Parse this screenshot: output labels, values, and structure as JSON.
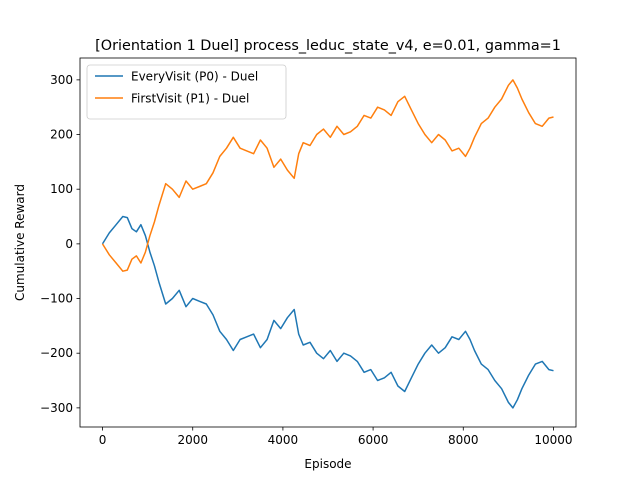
{
  "chart_data": {
    "type": "line",
    "title": "[Orientation 1 Duel] process_leduc_state_v4, e=0.01, gamma=1",
    "xlabel": "Episode",
    "ylabel": "Cumulative Reward",
    "xlim": [
      -500,
      10500
    ],
    "ylim": [
      -335,
      340
    ],
    "xticks": [
      0,
      2000,
      4000,
      6000,
      8000,
      10000
    ],
    "xtick_labels": [
      "0",
      "2000",
      "4000",
      "6000",
      "8000",
      "10000"
    ],
    "yticks": [
      -300,
      -200,
      -100,
      0,
      100,
      200,
      300
    ],
    "ytick_labels": [
      "−300",
      "−200",
      "−100",
      "0",
      "100",
      "200",
      "300"
    ],
    "grid": false,
    "legend_position": "upper-left",
    "series": [
      {
        "name": "EveryVisit (P0) - Duel",
        "color": "#1f77b4",
        "x": [
          0,
          150,
          300,
          450,
          550,
          650,
          750,
          850,
          950,
          1050,
          1150,
          1250,
          1400,
          1550,
          1700,
          1850,
          2000,
          2150,
          2300,
          2450,
          2600,
          2750,
          2900,
          3050,
          3200,
          3350,
          3500,
          3650,
          3800,
          3950,
          4100,
          4250,
          4350,
          4450,
          4600,
          4750,
          4900,
          5050,
          5200,
          5350,
          5500,
          5650,
          5800,
          5950,
          6100,
          6250,
          6400,
          6550,
          6700,
          6850,
          7000,
          7150,
          7300,
          7450,
          7600,
          7750,
          7900,
          8050,
          8150,
          8250,
          8400,
          8550,
          8700,
          8850,
          9000,
          9100,
          9200,
          9300,
          9450,
          9600,
          9750,
          9900,
          10000
        ],
        "y": [
          0,
          20,
          35,
          50,
          48,
          28,
          22,
          35,
          15,
          -15,
          -40,
          -70,
          -110,
          -100,
          -85,
          -115,
          -100,
          -105,
          -110,
          -130,
          -160,
          -175,
          -195,
          -175,
          -170,
          -165,
          -190,
          -175,
          -140,
          -155,
          -135,
          -120,
          -165,
          -185,
          -180,
          -200,
          -210,
          -195,
          -215,
          -200,
          -205,
          -215,
          -235,
          -230,
          -250,
          -245,
          -235,
          -260,
          -270,
          -245,
          -220,
          -200,
          -185,
          -200,
          -190,
          -170,
          -175,
          -160,
          -175,
          -195,
          -220,
          -230,
          -250,
          -265,
          -290,
          -300,
          -285,
          -265,
          -240,
          -220,
          -215,
          -230,
          -232
        ]
      },
      {
        "name": "FirstVisit (P1) - Duel",
        "color": "#ff7f0e",
        "x": [
          0,
          150,
          300,
          450,
          550,
          650,
          750,
          850,
          950,
          1050,
          1150,
          1250,
          1400,
          1550,
          1700,
          1850,
          2000,
          2150,
          2300,
          2450,
          2600,
          2750,
          2900,
          3050,
          3200,
          3350,
          3500,
          3650,
          3800,
          3950,
          4100,
          4250,
          4350,
          4450,
          4600,
          4750,
          4900,
          5050,
          5200,
          5350,
          5500,
          5650,
          5800,
          5950,
          6100,
          6250,
          6400,
          6550,
          6700,
          6850,
          7000,
          7150,
          7300,
          7450,
          7600,
          7750,
          7900,
          8050,
          8150,
          8250,
          8400,
          8550,
          8700,
          8850,
          9000,
          9100,
          9200,
          9300,
          9450,
          9600,
          9750,
          9900,
          10000
        ],
        "y": [
          0,
          -20,
          -35,
          -50,
          -48,
          -28,
          -22,
          -35,
          -15,
          15,
          40,
          70,
          110,
          100,
          85,
          115,
          100,
          105,
          110,
          130,
          160,
          175,
          195,
          175,
          170,
          165,
          190,
          175,
          140,
          155,
          135,
          120,
          165,
          185,
          180,
          200,
          210,
          195,
          215,
          200,
          205,
          215,
          235,
          230,
          250,
          245,
          235,
          260,
          270,
          245,
          220,
          200,
          185,
          200,
          190,
          170,
          175,
          160,
          175,
          195,
          220,
          230,
          250,
          265,
          290,
          300,
          285,
          265,
          240,
          220,
          215,
          230,
          232
        ]
      }
    ]
  }
}
